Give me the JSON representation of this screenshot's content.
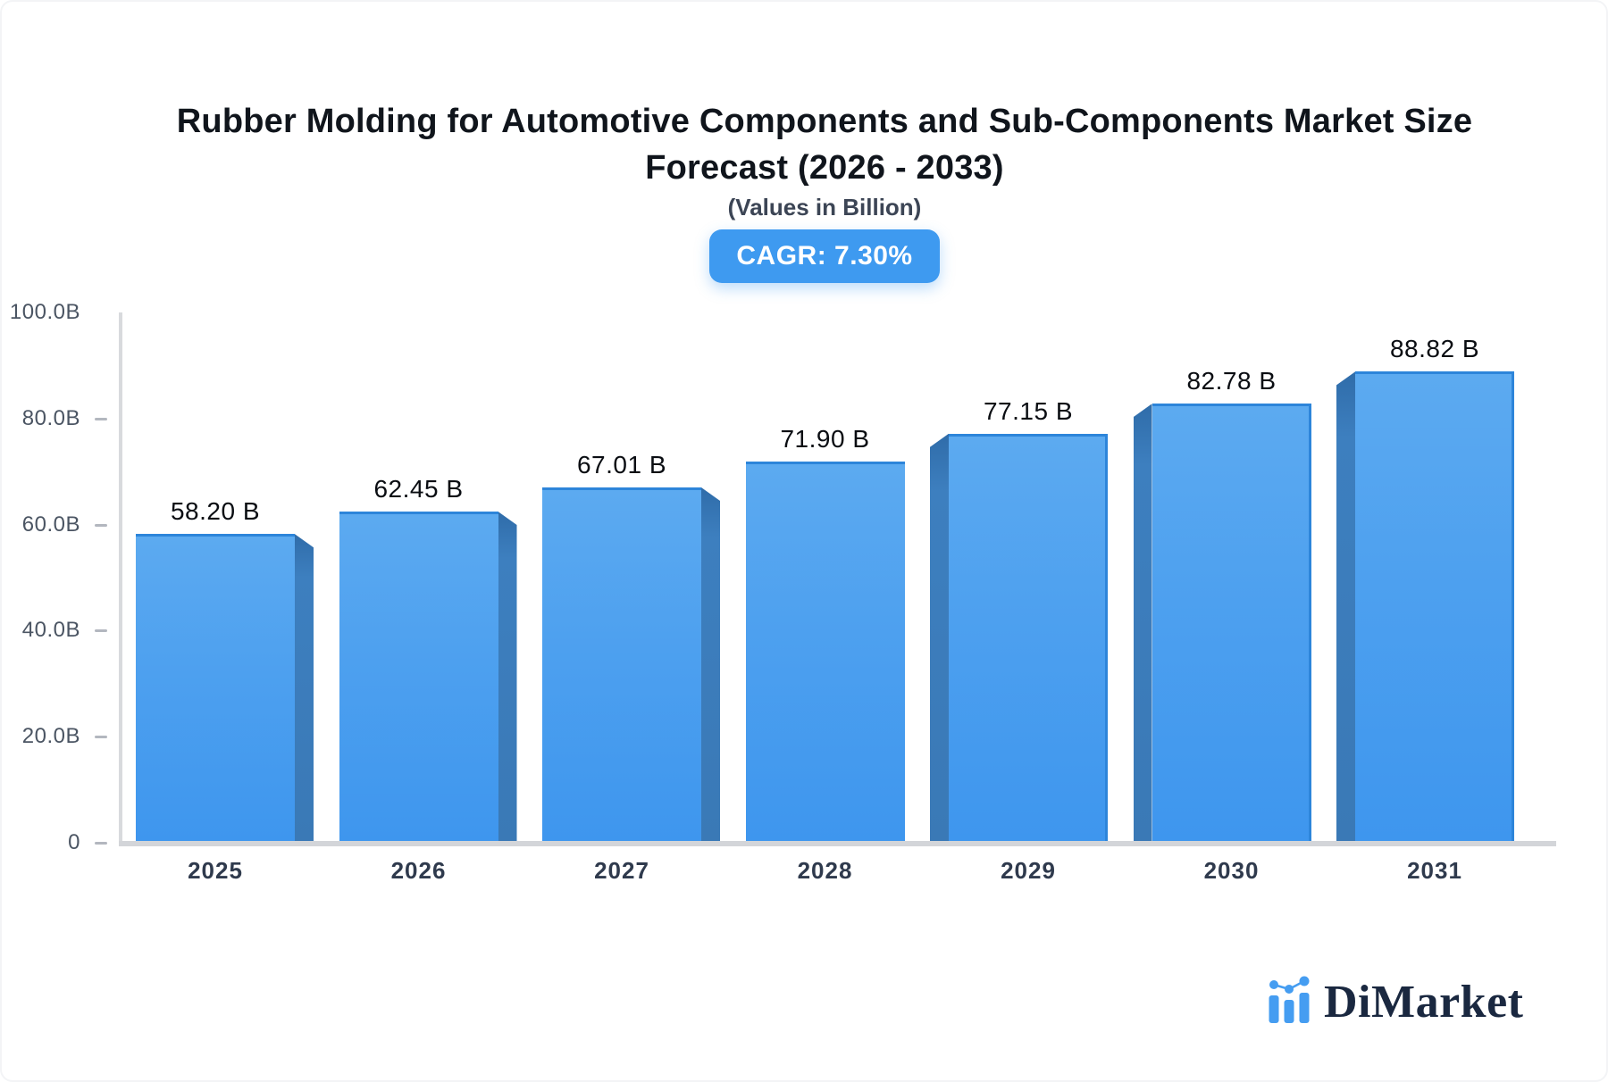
{
  "header": {
    "title_line1": "Rubber Molding for Automotive Components and Sub-Components Market Size",
    "title_line2": "Forecast (2026 - 2033)",
    "subtitle": "(Values in Billion)",
    "cagr_badge": "CAGR: 7.30%"
  },
  "chart_data": {
    "type": "bar",
    "title": "Rubber Molding for Automotive Components and Sub-Components Market Size Forecast (2026 - 2033)",
    "subtitle": "(Values in Billion)",
    "cagr_percent": "7.30%",
    "categories": [
      "2025",
      "2026",
      "2027",
      "2028",
      "2029",
      "2030",
      "2031"
    ],
    "values": [
      58.2,
      62.45,
      67.01,
      71.9,
      77.15,
      82.78,
      88.82
    ],
    "value_labels": [
      "58.20 B",
      "62.45 B",
      "67.01 B",
      "71.90 B",
      "77.15 B",
      "82.78 B",
      "88.82 B"
    ],
    "y_ticks": [
      {
        "label": "100.0B",
        "value": 100
      },
      {
        "label": "80.0B",
        "value": 80
      },
      {
        "label": "60.0B",
        "value": 60
      },
      {
        "label": "40.0B",
        "value": 40
      },
      {
        "label": "20.0B",
        "value": 20
      },
      {
        "label": "0",
        "value": 0
      }
    ],
    "ylim": [
      0,
      100
    ],
    "grid": false,
    "legend_position": "none",
    "bar_color": "#459dee",
    "bar_side_color": "#3a79b6",
    "bar_edge_color": "#2d85da",
    "axis_color": "#d8dadd",
    "badge_color": "#3e9af0"
  },
  "branding": {
    "name": "DiMarket",
    "icon": "bar-chart-logo-icon",
    "icon_color": "#459df1"
  }
}
